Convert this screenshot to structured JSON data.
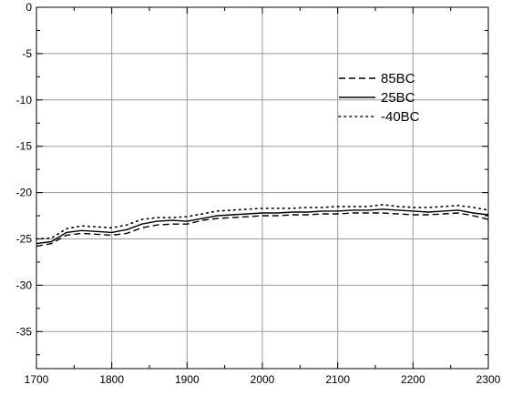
{
  "chart_data": {
    "type": "line",
    "title": "",
    "xlabel": "",
    "ylabel": "",
    "xlim": [
      1700,
      2300
    ],
    "ylim": [
      -39,
      0
    ],
    "x_ticks": [
      1700,
      1800,
      1900,
      2000,
      2100,
      2200,
      2300
    ],
    "y_ticks": [
      0,
      -5,
      -10,
      -15,
      -20,
      -25,
      -30,
      -35
    ],
    "grid": true,
    "legend_position": "top-right",
    "series": [
      {
        "name": "85ΒC",
        "style": "dashed",
        "color": "#000000",
        "x": [
          1700,
          1720,
          1740,
          1760,
          1780,
          1800,
          1820,
          1840,
          1860,
          1880,
          1900,
          1920,
          1940,
          1960,
          1980,
          2000,
          2020,
          2040,
          2060,
          2080,
          2100,
          2120,
          2140,
          2160,
          2180,
          2200,
          2220,
          2240,
          2260,
          2280,
          2300
        ],
        "y": [
          -25.8,
          -25.5,
          -24.6,
          -24.4,
          -24.5,
          -24.6,
          -24.4,
          -23.8,
          -23.5,
          -23.4,
          -23.4,
          -23.0,
          -22.8,
          -22.7,
          -22.6,
          -22.5,
          -22.5,
          -22.4,
          -22.4,
          -22.3,
          -22.3,
          -22.2,
          -22.2,
          -22.2,
          -22.3,
          -22.4,
          -22.4,
          -22.3,
          -22.2,
          -22.5,
          -22.9
        ]
      },
      {
        "name": "25ΒC",
        "style": "solid",
        "color": "#000000",
        "x": [
          1700,
          1720,
          1740,
          1760,
          1780,
          1800,
          1820,
          1840,
          1860,
          1880,
          1900,
          1920,
          1940,
          1960,
          1980,
          2000,
          2020,
          2040,
          2060,
          2080,
          2100,
          2120,
          2140,
          2160,
          2180,
          2200,
          2220,
          2240,
          2260,
          2280,
          2300
        ],
        "y": [
          -25.5,
          -25.3,
          -24.3,
          -24.1,
          -24.2,
          -24.3,
          -24.0,
          -23.4,
          -23.1,
          -23.0,
          -23.1,
          -22.8,
          -22.5,
          -22.4,
          -22.3,
          -22.2,
          -22.2,
          -22.1,
          -22.1,
          -22.0,
          -22.0,
          -21.9,
          -21.9,
          -21.8,
          -21.9,
          -22.0,
          -22.1,
          -22.0,
          -21.9,
          -22.2,
          -22.4
        ]
      },
      {
        "name": "-40ΒC",
        "style": "dotted",
        "color": "#000000",
        "x": [
          1700,
          1720,
          1740,
          1760,
          1780,
          1800,
          1820,
          1840,
          1860,
          1880,
          1900,
          1920,
          1940,
          1960,
          1980,
          2000,
          2020,
          2040,
          2060,
          2080,
          2100,
          2120,
          2140,
          2160,
          2180,
          2200,
          2220,
          2240,
          2260,
          2280,
          2300
        ],
        "y": [
          -25.0,
          -24.9,
          -23.9,
          -23.6,
          -23.7,
          -23.8,
          -23.5,
          -22.9,
          -22.7,
          -22.7,
          -22.6,
          -22.3,
          -22.0,
          -21.9,
          -21.8,
          -21.7,
          -21.7,
          -21.7,
          -21.6,
          -21.6,
          -21.5,
          -21.5,
          -21.5,
          -21.3,
          -21.5,
          -21.6,
          -21.6,
          -21.5,
          -21.4,
          -21.6,
          -21.9
        ]
      }
    ]
  }
}
